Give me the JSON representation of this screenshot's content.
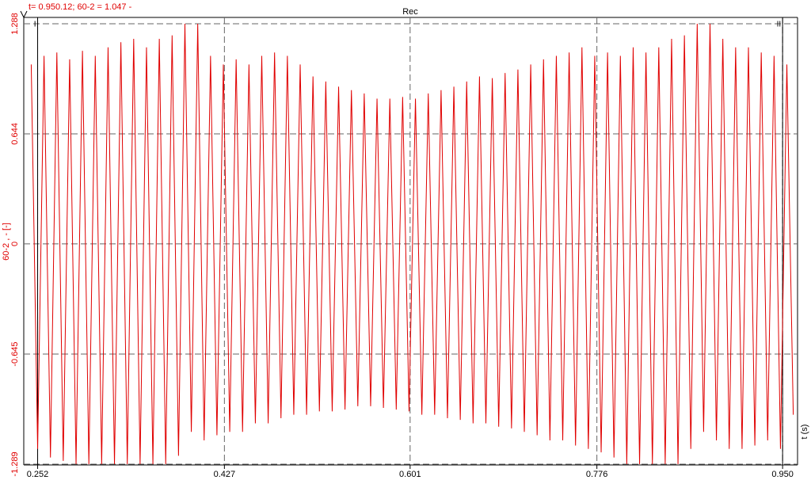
{
  "chart_data": {
    "type": "line",
    "header": "t= 0.950.12; 60-2 = 1.047 -",
    "title": "Rec",
    "y_label": "60-2 , - [-]",
    "x_label": "t (s)",
    "xlim": [
      0.239,
      0.964
    ],
    "ylim": [
      -1.289,
      1.288
    ],
    "xticks": [
      0.252,
      0.427,
      0.601,
      0.776,
      {
        "value": 0.95,
        "label": "0.950"
      }
    ],
    "yticks": [
      1.288,
      0.644,
      0,
      -0.645,
      -1.289
    ],
    "grid": true,
    "cursors": [
      {
        "label": "I",
        "x": 0.252
      },
      {
        "label": "II",
        "x": 0.95
      }
    ],
    "x": [
      0.246,
      0.252,
      0.258,
      0.264,
      0.27,
      0.276,
      0.282,
      0.288,
      0.294,
      0.3,
      0.306,
      0.312,
      0.318,
      0.324,
      0.33,
      0.336,
      0.342,
      0.348,
      0.354,
      0.36,
      0.366,
      0.372,
      0.378,
      0.384,
      0.39,
      0.396,
      0.402,
      0.408,
      0.414,
      0.42,
      0.426,
      0.432,
      0.438,
      0.444,
      0.45,
      0.456,
      0.462,
      0.468,
      0.474,
      0.48,
      0.486,
      0.492,
      0.498,
      0.504,
      0.51,
      0.516,
      0.522,
      0.528,
      0.534,
      0.54,
      0.546,
      0.552,
      0.558,
      0.564,
      0.57,
      0.576,
      0.582,
      0.588,
      0.594,
      0.6,
      0.606,
      0.612,
      0.618,
      0.624,
      0.63,
      0.636,
      0.642,
      0.648,
      0.654,
      0.66,
      0.666,
      0.672,
      0.678,
      0.684,
      0.69,
      0.696,
      0.702,
      0.708,
      0.714,
      0.72,
      0.726,
      0.732,
      0.738,
      0.744,
      0.75,
      0.756,
      0.762,
      0.768,
      0.774,
      0.78,
      0.786,
      0.792,
      0.798,
      0.804,
      0.81,
      0.816,
      0.822,
      0.828,
      0.834,
      0.84,
      0.846,
      0.852,
      0.858,
      0.864,
      0.87,
      0.876,
      0.882,
      0.888,
      0.894,
      0.9,
      0.906,
      0.912,
      0.918,
      0.924,
      0.93,
      0.936,
      0.942,
      0.948,
      0.954,
      0.96
    ],
    "series": [
      {
        "name": "60-2",
        "color": "#e00000",
        "values": [
          1.05,
          -1.2,
          1.1,
          -1.25,
          1.12,
          -1.27,
          1.08,
          -1.289,
          1.13,
          -1.289,
          1.1,
          -1.289,
          1.15,
          -1.289,
          1.18,
          -1.289,
          1.2,
          -1.289,
          1.15,
          -1.289,
          1.2,
          -1.289,
          1.22,
          -1.24,
          1.288,
          -1.1,
          1.288,
          -1.15,
          1.1,
          -1.12,
          1.05,
          -1.1,
          1.08,
          -1.1,
          1.05,
          -1.05,
          1.1,
          -1.05,
          1.12,
          -1.02,
          1.1,
          -1.0,
          1.05,
          -1.0,
          0.98,
          -0.98,
          0.95,
          -0.98,
          0.92,
          -0.97,
          0.9,
          -0.95,
          0.88,
          -0.95,
          0.85,
          -0.96,
          0.85,
          -0.97,
          0.86,
          -0.98,
          0.85,
          -1.0,
          0.88,
          -1.0,
          0.9,
          -1.02,
          0.92,
          -1.03,
          0.95,
          -1.05,
          0.98,
          -1.05,
          0.97,
          -1.07,
          1.0,
          -1.08,
          1.02,
          -1.1,
          1.05,
          -1.12,
          1.08,
          -1.15,
          1.1,
          -1.15,
          1.12,
          -1.18,
          1.15,
          -1.2,
          1.1,
          -1.22,
          1.12,
          -1.25,
          1.1,
          -1.289,
          1.15,
          -1.289,
          1.12,
          -1.289,
          1.15,
          -1.289,
          1.2,
          -1.289,
          1.22,
          -1.2,
          1.288,
          -1.1,
          1.288,
          -1.15,
          1.2,
          -1.2,
          1.15,
          -1.2,
          1.15,
          -1.18,
          1.12,
          -1.15,
          1.1,
          -1.2,
          1.05,
          -1.0
        ]
      }
    ]
  }
}
